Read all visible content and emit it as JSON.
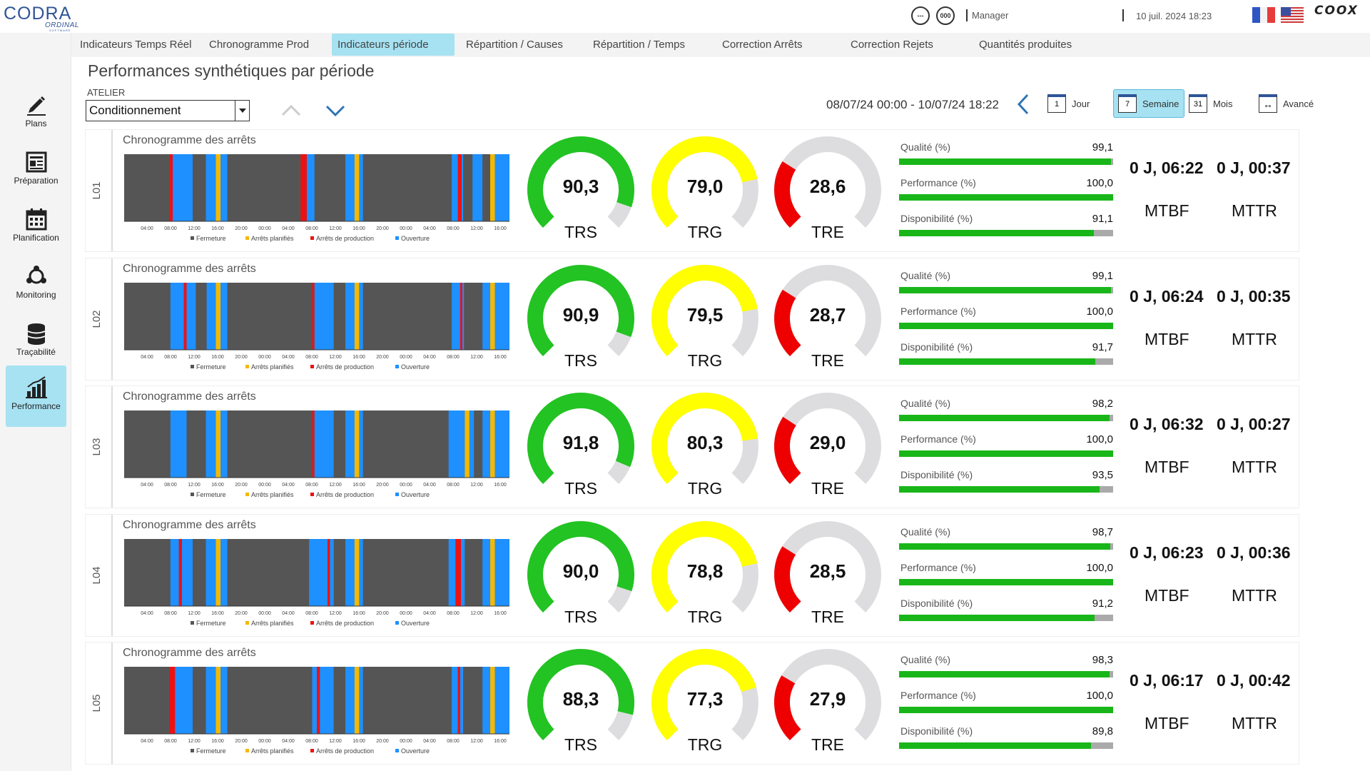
{
  "app": {
    "logo_main": "CODRA",
    "logo_sub": "ORDINAL",
    "logo_sub2": "SOFTWARE",
    "brand_right": "COOX",
    "btn1": "---",
    "btn2": "000",
    "user": "Manager",
    "datetime": "10 juil. 2024 18:23"
  },
  "nav_tabs": [
    {
      "label": "Indicateurs Temps Réel"
    },
    {
      "label": "Chronogramme Prod"
    },
    {
      "label": "Indicateurs période",
      "active": true
    },
    {
      "label": "Répartition / Causes"
    },
    {
      "label": "Répartition / Temps"
    },
    {
      "label": "Correction Arrêts"
    },
    {
      "label": "Correction Rejets"
    },
    {
      "label": "Quantités produites"
    }
  ],
  "sidebar": [
    {
      "label": "Plans",
      "icon": "pencil-icon"
    },
    {
      "label": "Préparation",
      "icon": "document-icon"
    },
    {
      "label": "Planification",
      "icon": "calendar-icon"
    },
    {
      "label": "Monitoring",
      "icon": "network-icon"
    },
    {
      "label": "Traçabilité",
      "icon": "database-icon"
    },
    {
      "label": "Performance",
      "icon": "bar-chart-icon",
      "active": true
    }
  ],
  "page": {
    "title": "Performances synthétiques par période",
    "atelier_label": "ATELIER",
    "atelier_value": "Conditionnement",
    "range": "08/07/24 00:00 - 10/07/24 18:22",
    "periods": [
      {
        "icon_text": "1",
        "label": "Jour"
      },
      {
        "icon_text": "7",
        "label": "Semaine",
        "active": true
      },
      {
        "icon_text": "31",
        "label": "Mois"
      },
      {
        "icon_text": "↔",
        "label": "Avancé"
      }
    ]
  },
  "colors": {
    "green": "#22c322",
    "yellow": "#ffff00",
    "red": "#ee0000",
    "gauge_bg": "#dddde0",
    "chrono_closed": "#555555",
    "chrono_planned": "#f5b800",
    "chrono_prod": "#ee1111",
    "chrono_open": "#1e90ff"
  },
  "chrono": {
    "title": "Chronogramme des arrêts",
    "ticks": [
      "04:00",
      "08:00",
      "12:00",
      "16:00",
      "20:00",
      "00:00",
      "04:00",
      "08:00",
      "12:00",
      "16:00",
      "20:00",
      "00:00",
      "04:00",
      "08:00",
      "12:00",
      "16:00"
    ],
    "legend": [
      "Fermeture",
      "Arrêts planifiés",
      "Arrêts de production",
      "Ouverture"
    ]
  },
  "labels": {
    "qualite": "Qualité (%)",
    "performance": "Performance (%)",
    "disponibilite": "Disponibilité (%)",
    "trs": "TRS",
    "trg": "TRG",
    "tre": "TRE",
    "mtbf": "MTBF",
    "mttr": "MTTR"
  },
  "lines": [
    {
      "name": "L01",
      "trs": "90,3",
      "trg": "79,0",
      "tre": "28,6",
      "qualite": "99,1",
      "performance": "100,0",
      "disponibilite": "91,1",
      "mtbf": "0 J, 06:22",
      "mttr": "0 J, 00:37"
    },
    {
      "name": "L02",
      "trs": "90,9",
      "trg": "79,5",
      "tre": "28,7",
      "qualite": "99,1",
      "performance": "100,0",
      "disponibilite": "91,7",
      "mtbf": "0 J, 06:24",
      "mttr": "0 J, 00:35"
    },
    {
      "name": "L03",
      "trs": "91,8",
      "trg": "80,3",
      "tre": "29,0",
      "qualite": "98,2",
      "performance": "100,0",
      "disponibilite": "93,5",
      "mtbf": "0 J, 06:32",
      "mttr": "0 J, 00:27"
    },
    {
      "name": "L04",
      "trs": "90,0",
      "trg": "78,8",
      "tre": "28,5",
      "qualite": "98,7",
      "performance": "100,0",
      "disponibilite": "91,2",
      "mtbf": "0 J, 06:23",
      "mttr": "0 J, 00:36"
    },
    {
      "name": "L05",
      "trs": "88,3",
      "trg": "77,3",
      "tre": "27,9",
      "qualite": "98,3",
      "performance": "100,0",
      "disponibilite": "89,8",
      "mtbf": "0 J, 06:17",
      "mttr": "0 J, 00:42"
    }
  ]
}
